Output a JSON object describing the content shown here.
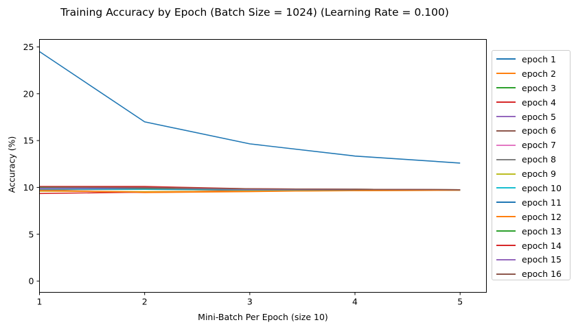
{
  "chart_data": {
    "type": "line",
    "title": "Training Accuracy by Epoch (Batch Size = 1024) (Learning Rate = 0.100)",
    "xlabel": "Mini-Batch Per Epoch (size 10)",
    "ylabel": "Accuracy (%)",
    "x": [
      1,
      2,
      3,
      4,
      5
    ],
    "xlim": [
      1,
      5.25
    ],
    "ylim": [
      -1.2,
      25.8
    ],
    "xticks": [
      "1",
      "2",
      "3",
      "4",
      "5"
    ],
    "yticks": [
      "0",
      "5",
      "10",
      "15",
      "20",
      "25"
    ],
    "legend_position": "outside right",
    "series": [
      {
        "name": "epoch 1",
        "color": "#1f77b4",
        "values": [
          24.5,
          17.0,
          14.65,
          13.35,
          12.6
        ]
      },
      {
        "name": "epoch 2",
        "color": "#ff7f0e",
        "values": [
          9.7,
          9.45,
          9.55,
          9.7,
          9.7
        ]
      },
      {
        "name": "epoch 3",
        "color": "#2ca02c",
        "values": [
          10.0,
          9.95,
          9.8,
          9.8,
          9.75
        ]
      },
      {
        "name": "epoch 4",
        "color": "#d62728",
        "values": [
          9.35,
          9.5,
          9.65,
          9.7,
          9.7
        ]
      },
      {
        "name": "epoch 5",
        "color": "#9467bd",
        "values": [
          9.8,
          9.85,
          9.75,
          9.75,
          9.7
        ]
      },
      {
        "name": "epoch 6",
        "color": "#8c564b",
        "values": [
          9.9,
          9.9,
          9.8,
          9.75,
          9.75
        ]
      },
      {
        "name": "epoch 7",
        "color": "#e377c2",
        "values": [
          10.0,
          9.95,
          9.85,
          9.8,
          9.75
        ]
      },
      {
        "name": "epoch 8",
        "color": "#7f7f7f",
        "values": [
          9.75,
          9.8,
          9.7,
          9.7,
          9.7
        ]
      },
      {
        "name": "epoch 9",
        "color": "#bcbd22",
        "values": [
          9.6,
          9.55,
          9.6,
          9.65,
          9.7
        ]
      },
      {
        "name": "epoch 10",
        "color": "#17becf",
        "values": [
          9.85,
          9.8,
          9.75,
          9.75,
          9.7
        ]
      },
      {
        "name": "epoch 11",
        "color": "#1f77b4",
        "values": [
          9.9,
          9.85,
          9.8,
          9.75,
          9.75
        ]
      },
      {
        "name": "epoch 12",
        "color": "#ff7f0e",
        "values": [
          9.65,
          9.5,
          9.6,
          9.65,
          9.7
        ]
      },
      {
        "name": "epoch 13",
        "color": "#2ca02c",
        "values": [
          10.0,
          9.9,
          9.8,
          9.8,
          9.75
        ]
      },
      {
        "name": "epoch 14",
        "color": "#d62728",
        "values": [
          10.1,
          10.1,
          9.85,
          9.8,
          9.75
        ]
      },
      {
        "name": "epoch 15",
        "color": "#9467bd",
        "values": [
          9.9,
          9.95,
          9.8,
          9.8,
          9.75
        ]
      },
      {
        "name": "epoch 16",
        "color": "#8c564b",
        "values": [
          10.05,
          10.0,
          9.85,
          9.8,
          9.75
        ]
      }
    ]
  }
}
